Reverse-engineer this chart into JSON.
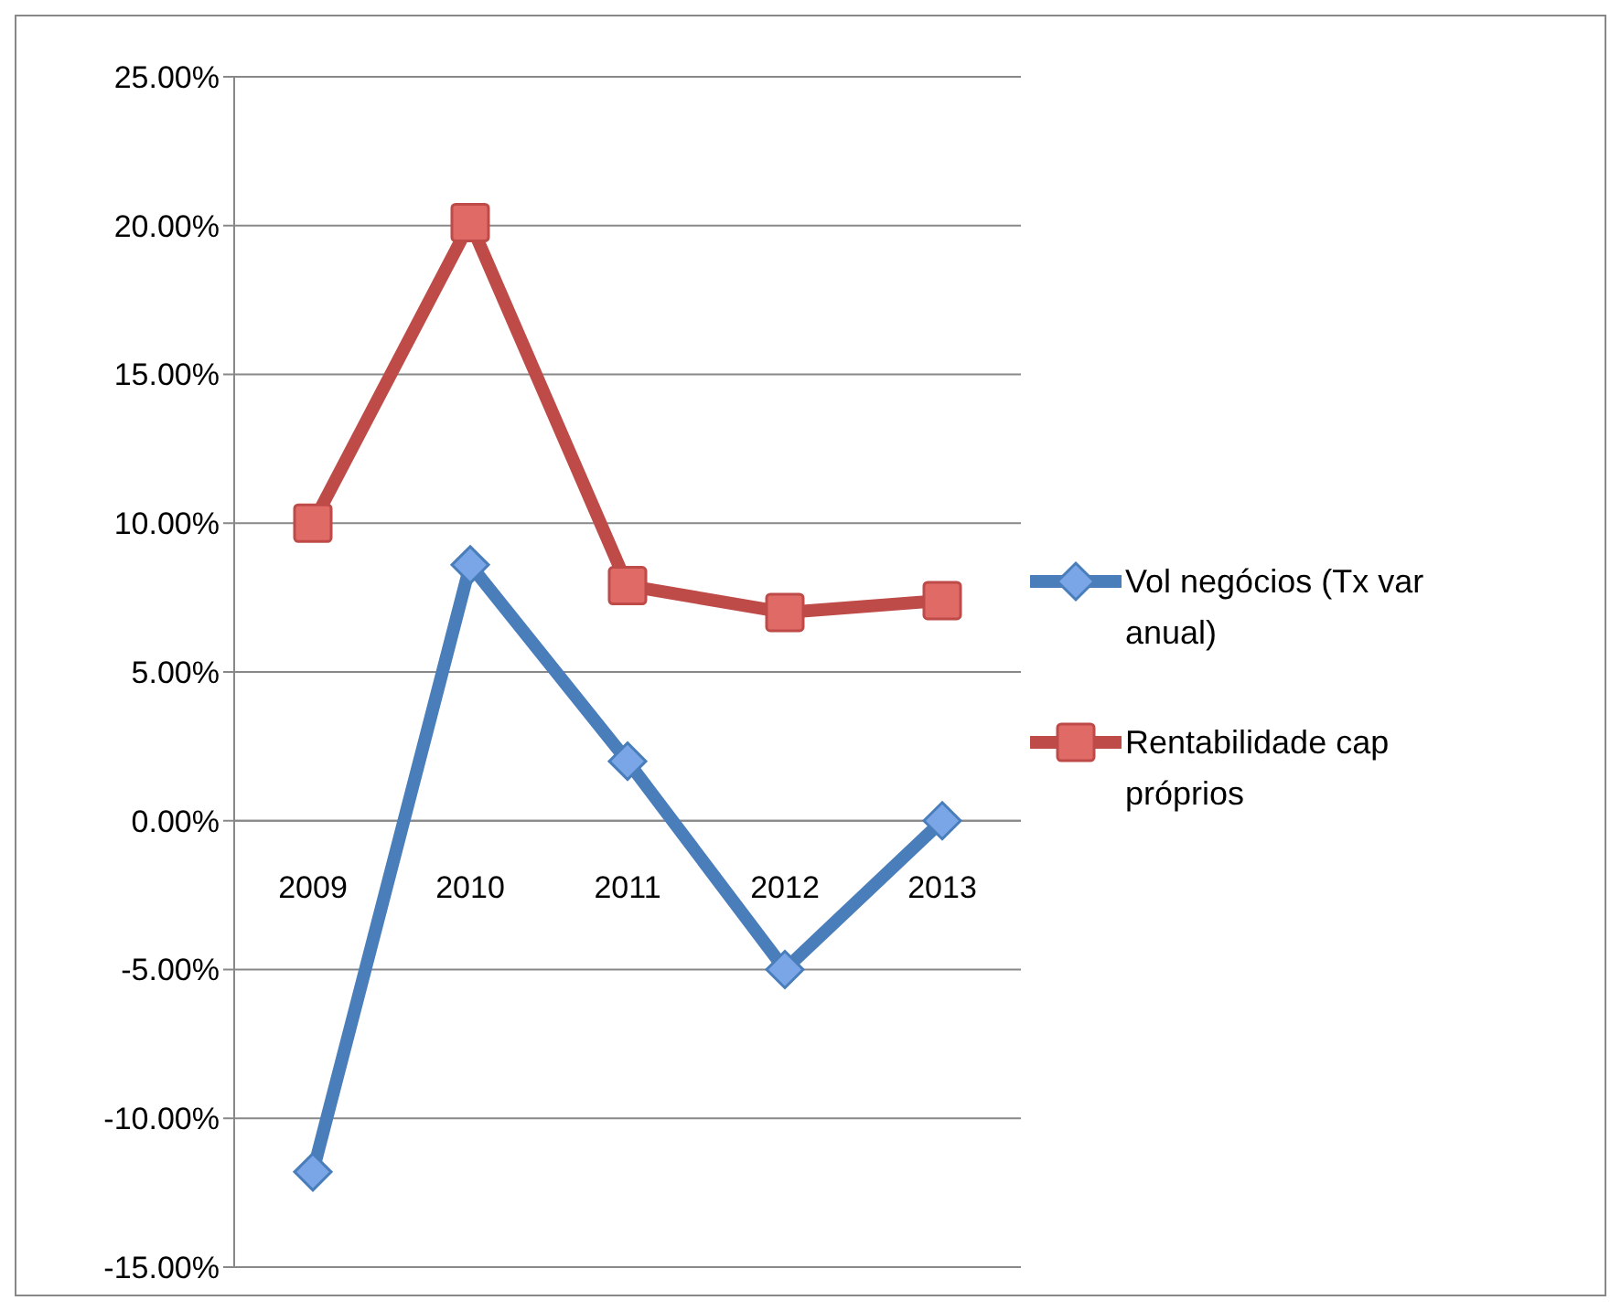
{
  "chart_data": {
    "type": "line",
    "categories": [
      "2009",
      "2010",
      "2011",
      "2012",
      "2013"
    ],
    "series": [
      {
        "name": "Vol negócios (Tx var anual)",
        "color": "#4a7ebb",
        "marker": "diamond",
        "values": [
          -11.8,
          8.6,
          2.0,
          -5.0,
          0.0
        ]
      },
      {
        "name": "Rentabilidade cap próprios",
        "color": "#be4b48",
        "marker": "square",
        "values": [
          10.0,
          20.1,
          7.9,
          7.0,
          7.4
        ]
      }
    ],
    "ylim": [
      -15,
      25
    ],
    "yticks": [
      {
        "value": -15,
        "label": "-15.00%"
      },
      {
        "value": -10,
        "label": "-10.00%"
      },
      {
        "value": -5,
        "label": "-5.00%"
      },
      {
        "value": 0,
        "label": "0.00%"
      },
      {
        "value": 5,
        "label": "5.00%"
      },
      {
        "value": 10,
        "label": "10.00%"
      },
      {
        "value": 15,
        "label": "15.00%"
      },
      {
        "value": 20,
        "label": "20.00%"
      },
      {
        "value": 25,
        "label": "25.00%"
      }
    ],
    "grid": "y",
    "legend": "right"
  }
}
